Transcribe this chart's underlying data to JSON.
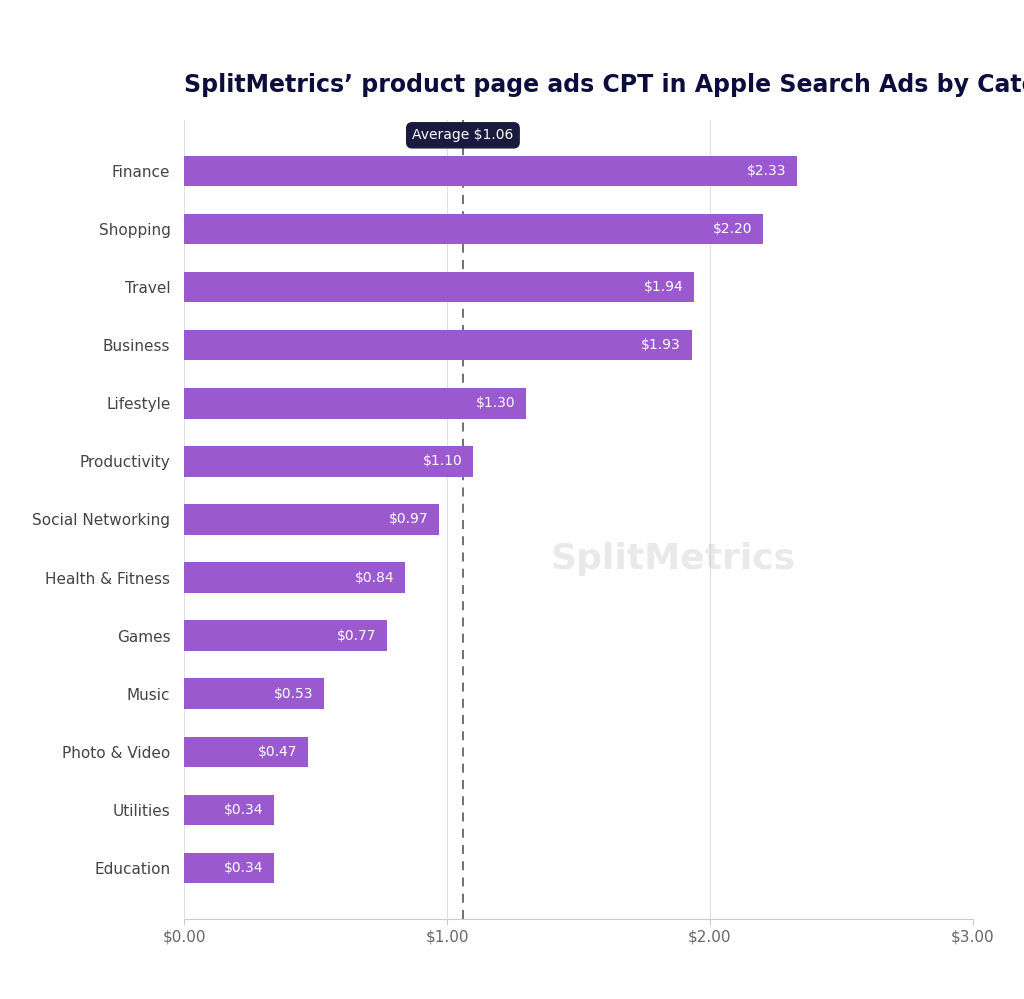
{
  "title": "SplitMetrics’ product page ads CPT in Apple Search Ads by Category",
  "categories": [
    "Finance",
    "Shopping",
    "Travel",
    "Business",
    "Lifestyle",
    "Productivity",
    "Social Networking",
    "Health & Fitness",
    "Games",
    "Music",
    "Photo & Video",
    "Utilities",
    "Education"
  ],
  "values": [
    2.33,
    2.2,
    1.94,
    1.93,
    1.3,
    1.1,
    0.97,
    0.84,
    0.77,
    0.53,
    0.47,
    0.34,
    0.34
  ],
  "bar_color": "#9b59d0",
  "average": 1.06,
  "average_label": "Average $1.06",
  "xlim": [
    0,
    3.0
  ],
  "xtick_labels": [
    "$0.00",
    "$1.00",
    "$2.00",
    "$3.00"
  ],
  "xtick_vals": [
    0.0,
    1.0,
    2.0,
    3.0
  ],
  "background_color": "#ffffff",
  "watermark": "SplitMetrics",
  "title_fontsize": 17,
  "label_fontsize": 11,
  "value_fontsize": 10,
  "tick_fontsize": 11,
  "avg_box_color": "#1a1a3e",
  "title_color": "#0d0d3d"
}
